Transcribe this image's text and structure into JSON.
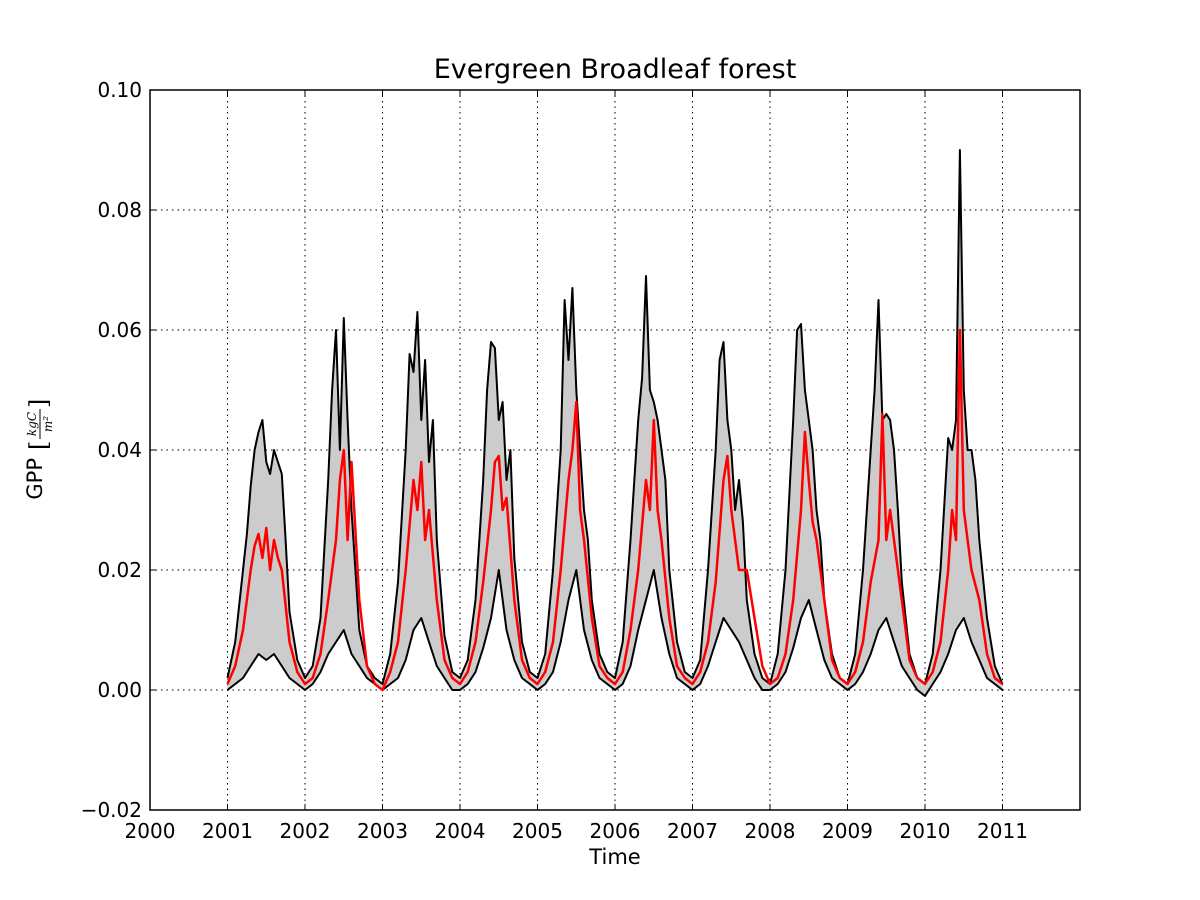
{
  "chart_data": {
    "type": "area",
    "title": "Evergreen Broadleaf forest",
    "xlabel": "Time",
    "ylabel_prefix": "GPP",
    "ylabel_fraction": {
      "numerator": "kgC",
      "denominator": "m²"
    },
    "xlim": [
      2000,
      2012
    ],
    "ylim": [
      -0.02,
      0.1
    ],
    "x_ticks": [
      2000,
      2001,
      2002,
      2003,
      2004,
      2005,
      2006,
      2007,
      2008,
      2009,
      2010,
      2011
    ],
    "x_tick_labels": [
      "2000",
      "2001",
      "2002",
      "2003",
      "2004",
      "2005",
      "2006",
      "2007",
      "2008",
      "2009",
      "2010",
      "2011"
    ],
    "y_ticks": [
      -0.02,
      0.0,
      0.02,
      0.04,
      0.06,
      0.08,
      0.1
    ],
    "y_tick_labels": [
      "−0.02",
      "0.00",
      "0.02",
      "0.04",
      "0.06",
      "0.08",
      "0.10"
    ],
    "grid": true,
    "colors": {
      "band_fill": "#cccccc",
      "band_edge": "#000000",
      "mean_line": "#ff0000"
    },
    "series": [
      {
        "role": "upper",
        "x": [
          2001.0,
          2001.1,
          2001.2,
          2001.25,
          2001.3,
          2001.35,
          2001.4,
          2001.45,
          2001.5,
          2001.55,
          2001.6,
          2001.65,
          2001.7,
          2001.75,
          2001.8,
          2001.9,
          2002.0,
          2002.1,
          2002.2,
          2002.3,
          2002.35,
          2002.4,
          2002.45,
          2002.5,
          2002.55,
          2002.6,
          2002.65,
          2002.7,
          2002.8,
          2002.9,
          2003.0,
          2003.1,
          2003.2,
          2003.3,
          2003.35,
          2003.4,
          2003.45,
          2003.5,
          2003.55,
          2003.6,
          2003.65,
          2003.7,
          2003.8,
          2003.9,
          2004.0,
          2004.1,
          2004.2,
          2004.3,
          2004.35,
          2004.4,
          2004.45,
          2004.5,
          2004.55,
          2004.6,
          2004.65,
          2004.7,
          2004.8,
          2004.9,
          2005.0,
          2005.1,
          2005.2,
          2005.3,
          2005.35,
          2005.4,
          2005.45,
          2005.5,
          2005.55,
          2005.6,
          2005.65,
          2005.7,
          2005.8,
          2005.9,
          2006.0,
          2006.1,
          2006.2,
          2006.3,
          2006.35,
          2006.4,
          2006.45,
          2006.5,
          2006.55,
          2006.6,
          2006.65,
          2006.7,
          2006.8,
          2006.9,
          2007.0,
          2007.1,
          2007.2,
          2007.3,
          2007.35,
          2007.4,
          2007.45,
          2007.5,
          2007.55,
          2007.6,
          2007.65,
          2007.7,
          2007.8,
          2007.9,
          2008.0,
          2008.1,
          2008.2,
          2008.3,
          2008.35,
          2008.4,
          2008.45,
          2008.5,
          2008.55,
          2008.6,
          2008.65,
          2008.7,
          2008.8,
          2008.9,
          2009.0,
          2009.1,
          2009.2,
          2009.3,
          2009.35,
          2009.4,
          2009.45,
          2009.5,
          2009.55,
          2009.6,
          2009.65,
          2009.7,
          2009.8,
          2009.9,
          2010.0,
          2010.1,
          2010.2,
          2010.3,
          2010.35,
          2010.4,
          2010.45,
          2010.5,
          2010.55,
          2010.6,
          2010.65,
          2010.7,
          2010.8,
          2010.9,
          2011.0
        ],
        "values": [
          0.002,
          0.008,
          0.02,
          0.026,
          0.034,
          0.04,
          0.043,
          0.045,
          0.038,
          0.036,
          0.04,
          0.038,
          0.036,
          0.025,
          0.013,
          0.005,
          0.002,
          0.004,
          0.012,
          0.035,
          0.05,
          0.06,
          0.04,
          0.062,
          0.045,
          0.03,
          0.02,
          0.01,
          0.004,
          0.002,
          0.001,
          0.006,
          0.018,
          0.04,
          0.056,
          0.053,
          0.063,
          0.045,
          0.055,
          0.038,
          0.045,
          0.025,
          0.009,
          0.003,
          0.002,
          0.005,
          0.015,
          0.035,
          0.05,
          0.058,
          0.057,
          0.045,
          0.048,
          0.035,
          0.04,
          0.022,
          0.008,
          0.003,
          0.002,
          0.006,
          0.02,
          0.04,
          0.065,
          0.055,
          0.067,
          0.05,
          0.04,
          0.03,
          0.025,
          0.015,
          0.006,
          0.003,
          0.002,
          0.008,
          0.025,
          0.045,
          0.052,
          0.069,
          0.05,
          0.048,
          0.045,
          0.04,
          0.035,
          0.02,
          0.008,
          0.003,
          0.002,
          0.005,
          0.02,
          0.04,
          0.055,
          0.058,
          0.045,
          0.04,
          0.03,
          0.035,
          0.028,
          0.015,
          0.006,
          0.002,
          0.001,
          0.006,
          0.02,
          0.045,
          0.06,
          0.061,
          0.05,
          0.045,
          0.04,
          0.03,
          0.025,
          0.015,
          0.006,
          0.002,
          0.001,
          0.006,
          0.02,
          0.04,
          0.05,
          0.065,
          0.045,
          0.046,
          0.045,
          0.04,
          0.03,
          0.018,
          0.006,
          0.002,
          0.001,
          0.006,
          0.02,
          0.042,
          0.04,
          0.045,
          0.09,
          0.05,
          0.04,
          0.04,
          0.035,
          0.025,
          0.012,
          0.004,
          0.001
        ]
      },
      {
        "role": "lower",
        "x": [
          2001.0,
          2001.1,
          2001.2,
          2001.3,
          2001.4,
          2001.5,
          2001.6,
          2001.7,
          2001.8,
          2001.9,
          2002.0,
          2002.1,
          2002.2,
          2002.3,
          2002.4,
          2002.5,
          2002.6,
          2002.7,
          2002.8,
          2002.9,
          2003.0,
          2003.1,
          2003.2,
          2003.3,
          2003.4,
          2003.5,
          2003.6,
          2003.7,
          2003.8,
          2003.9,
          2004.0,
          2004.1,
          2004.2,
          2004.3,
          2004.4,
          2004.5,
          2004.6,
          2004.7,
          2004.8,
          2004.9,
          2005.0,
          2005.1,
          2005.2,
          2005.3,
          2005.4,
          2005.5,
          2005.6,
          2005.7,
          2005.8,
          2005.9,
          2006.0,
          2006.1,
          2006.2,
          2006.3,
          2006.4,
          2006.5,
          2006.6,
          2006.7,
          2006.8,
          2006.9,
          2007.0,
          2007.1,
          2007.2,
          2007.3,
          2007.4,
          2007.5,
          2007.6,
          2007.7,
          2007.8,
          2007.9,
          2008.0,
          2008.1,
          2008.2,
          2008.3,
          2008.4,
          2008.5,
          2008.6,
          2008.7,
          2008.8,
          2008.9,
          2009.0,
          2009.1,
          2009.2,
          2009.3,
          2009.4,
          2009.5,
          2009.6,
          2009.7,
          2009.8,
          2009.9,
          2010.0,
          2010.1,
          2010.2,
          2010.3,
          2010.4,
          2010.5,
          2010.6,
          2010.7,
          2010.8,
          2010.9,
          2011.0
        ],
        "values": [
          0.0,
          0.001,
          0.002,
          0.004,
          0.006,
          0.005,
          0.006,
          0.004,
          0.002,
          0.001,
          0.0,
          0.001,
          0.003,
          0.006,
          0.008,
          0.01,
          0.006,
          0.004,
          0.002,
          0.001,
          0.0,
          0.001,
          0.002,
          0.005,
          0.01,
          0.012,
          0.008,
          0.004,
          0.002,
          0.0,
          0.0,
          0.001,
          0.003,
          0.007,
          0.012,
          0.02,
          0.01,
          0.005,
          0.002,
          0.001,
          0.0,
          0.001,
          0.003,
          0.008,
          0.015,
          0.02,
          0.01,
          0.005,
          0.002,
          0.001,
          0.0,
          0.001,
          0.004,
          0.01,
          0.015,
          0.02,
          0.012,
          0.006,
          0.002,
          0.001,
          0.0,
          0.001,
          0.004,
          0.008,
          0.012,
          0.01,
          0.008,
          0.005,
          0.002,
          0.0,
          0.0,
          0.001,
          0.003,
          0.007,
          0.012,
          0.015,
          0.01,
          0.005,
          0.002,
          0.001,
          0.0,
          0.001,
          0.003,
          0.006,
          0.01,
          0.012,
          0.008,
          0.004,
          0.002,
          0.0,
          -0.001,
          0.001,
          0.003,
          0.006,
          0.01,
          0.012,
          0.008,
          0.005,
          0.002,
          0.001,
          0.0
        ]
      },
      {
        "role": "mean",
        "x": [
          2001.0,
          2001.1,
          2001.2,
          2001.3,
          2001.35,
          2001.4,
          2001.45,
          2001.5,
          2001.55,
          2001.6,
          2001.65,
          2001.7,
          2001.8,
          2001.9,
          2002.0,
          2002.1,
          2002.2,
          2002.3,
          2002.4,
          2002.45,
          2002.5,
          2002.55,
          2002.6,
          2002.7,
          2002.8,
          2002.9,
          2003.0,
          2003.1,
          2003.2,
          2003.3,
          2003.4,
          2003.45,
          2003.5,
          2003.55,
          2003.6,
          2003.7,
          2003.8,
          2003.9,
          2004.0,
          2004.1,
          2004.2,
          2004.3,
          2004.4,
          2004.45,
          2004.5,
          2004.55,
          2004.6,
          2004.7,
          2004.8,
          2004.9,
          2005.0,
          2005.1,
          2005.2,
          2005.3,
          2005.4,
          2005.45,
          2005.5,
          2005.55,
          2005.6,
          2005.7,
          2005.8,
          2005.9,
          2006.0,
          2006.1,
          2006.2,
          2006.3,
          2006.4,
          2006.45,
          2006.5,
          2006.55,
          2006.6,
          2006.7,
          2006.8,
          2006.9,
          2007.0,
          2007.1,
          2007.2,
          2007.3,
          2007.4,
          2007.45,
          2007.5,
          2007.55,
          2007.6,
          2007.7,
          2007.8,
          2007.9,
          2008.0,
          2008.1,
          2008.2,
          2008.3,
          2008.4,
          2008.45,
          2008.5,
          2008.55,
          2008.6,
          2008.7,
          2008.8,
          2008.9,
          2009.0,
          2009.1,
          2009.2,
          2009.3,
          2009.4,
          2009.45,
          2009.5,
          2009.55,
          2009.6,
          2009.7,
          2009.8,
          2009.9,
          2010.0,
          2010.1,
          2010.2,
          2010.3,
          2010.35,
          2010.4,
          2010.45,
          2010.5,
          2010.55,
          2010.6,
          2010.7,
          2010.8,
          2010.9,
          2011.0
        ],
        "values": [
          0.001,
          0.004,
          0.01,
          0.02,
          0.024,
          0.026,
          0.022,
          0.027,
          0.02,
          0.025,
          0.022,
          0.02,
          0.008,
          0.003,
          0.001,
          0.002,
          0.006,
          0.015,
          0.025,
          0.035,
          0.04,
          0.025,
          0.038,
          0.015,
          0.004,
          0.001,
          0.0,
          0.003,
          0.008,
          0.02,
          0.035,
          0.03,
          0.038,
          0.025,
          0.03,
          0.015,
          0.005,
          0.002,
          0.001,
          0.003,
          0.008,
          0.018,
          0.03,
          0.038,
          0.039,
          0.03,
          0.032,
          0.015,
          0.005,
          0.002,
          0.001,
          0.003,
          0.008,
          0.02,
          0.035,
          0.04,
          0.048,
          0.03,
          0.025,
          0.012,
          0.004,
          0.002,
          0.001,
          0.003,
          0.01,
          0.02,
          0.035,
          0.03,
          0.045,
          0.03,
          0.025,
          0.012,
          0.004,
          0.002,
          0.001,
          0.003,
          0.008,
          0.018,
          0.035,
          0.039,
          0.03,
          0.025,
          0.02,
          0.02,
          0.012,
          0.004,
          0.001,
          0.002,
          0.006,
          0.015,
          0.03,
          0.043,
          0.035,
          0.028,
          0.025,
          0.015,
          0.005,
          0.002,
          0.001,
          0.003,
          0.008,
          0.018,
          0.025,
          0.046,
          0.025,
          0.03,
          0.025,
          0.015,
          0.005,
          0.002,
          0.001,
          0.003,
          0.008,
          0.02,
          0.03,
          0.025,
          0.06,
          0.03,
          0.025,
          0.02,
          0.015,
          0.006,
          0.002,
          0.001
        ]
      }
    ]
  }
}
